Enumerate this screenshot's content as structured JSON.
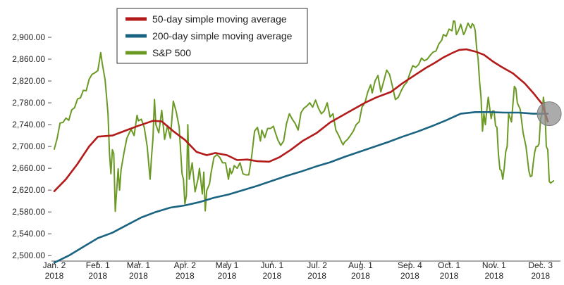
{
  "chart_data": {
    "type": "line",
    "title": "",
    "xlabel": "",
    "ylabel": "",
    "ylim": [
      2490,
      2940
    ],
    "grid": false,
    "legend_position": "top-center",
    "yticks": [
      2500,
      2540,
      2580,
      2620,
      2660,
      2700,
      2740,
      2780,
      2820,
      2860,
      2900
    ],
    "ytick_labels": [
      "2,500.00",
      "2,540.00",
      "2,580.00",
      "2,620.00",
      "2,660.00",
      "2,700.00",
      "2,740.00",
      "2,780.00",
      "2,820.00",
      "2,860.00",
      "2,900.00"
    ],
    "x_domain": [
      0,
      340
    ],
    "x_ticks": [
      {
        "day": 0,
        "line1": "Jan. 2",
        "line2": "2018"
      },
      {
        "day": 30,
        "line1": "Feb. 1",
        "line2": "2018"
      },
      {
        "day": 58,
        "line1": "Mar. 1",
        "line2": "2018"
      },
      {
        "day": 90,
        "line1": "Apr. 2",
        "line2": "2018"
      },
      {
        "day": 119,
        "line1": "May 1",
        "line2": "2018"
      },
      {
        "day": 150,
        "line1": "Jun. 1",
        "line2": "2018"
      },
      {
        "day": 181,
        "line1": "Jul. 2",
        "line2": "2018"
      },
      {
        "day": 211,
        "line1": "Aug. 1",
        "line2": "2018"
      },
      {
        "day": 245,
        "line1": "Sep. 4",
        "line2": "2018"
      },
      {
        "day": 272,
        "line1": "Oct. 1",
        "line2": "2018"
      },
      {
        "day": 303,
        "line1": "Nov. 1",
        "line2": "2018"
      },
      {
        "day": 335,
        "line1": "Dec. 3",
        "line2": "2018"
      }
    ],
    "series": [
      {
        "name": "50-day simple moving average",
        "color": "#b31b1b",
        "points": [
          [
            0,
            2618
          ],
          [
            8,
            2640
          ],
          [
            16,
            2668
          ],
          [
            24,
            2700
          ],
          [
            30,
            2718
          ],
          [
            40,
            2720
          ],
          [
            50,
            2730
          ],
          [
            58,
            2738
          ],
          [
            68,
            2747
          ],
          [
            74,
            2746
          ],
          [
            82,
            2728
          ],
          [
            90,
            2712
          ],
          [
            98,
            2690
          ],
          [
            105,
            2684
          ],
          [
            111,
            2688
          ],
          [
            119,
            2684
          ],
          [
            126,
            2675
          ],
          [
            133,
            2676
          ],
          [
            140,
            2673
          ],
          [
            148,
            2672
          ],
          [
            155,
            2680
          ],
          [
            163,
            2694
          ],
          [
            171,
            2710
          ],
          [
            181,
            2725
          ],
          [
            190,
            2744
          ],
          [
            198,
            2756
          ],
          [
            206,
            2768
          ],
          [
            214,
            2780
          ],
          [
            222,
            2790
          ],
          [
            232,
            2800
          ],
          [
            240,
            2816
          ],
          [
            248,
            2830
          ],
          [
            256,
            2844
          ],
          [
            262,
            2853
          ],
          [
            268,
            2863
          ],
          [
            274,
            2871
          ],
          [
            279,
            2877
          ],
          [
            284,
            2878
          ],
          [
            290,
            2874
          ],
          [
            296,
            2868
          ],
          [
            302,
            2856
          ],
          [
            308,
            2846
          ],
          [
            316,
            2834
          ],
          [
            324,
            2816
          ],
          [
            330,
            2798
          ],
          [
            336,
            2778
          ],
          [
            340,
            2746
          ]
        ]
      },
      {
        "name": "200-day simple moving average",
        "color": "#1a6482",
        "points": [
          [
            0,
            2487
          ],
          [
            10,
            2500
          ],
          [
            20,
            2516
          ],
          [
            30,
            2532
          ],
          [
            40,
            2542
          ],
          [
            50,
            2556
          ],
          [
            60,
            2570
          ],
          [
            70,
            2580
          ],
          [
            80,
            2588
          ],
          [
            90,
            2592
          ],
          [
            100,
            2598
          ],
          [
            110,
            2606
          ],
          [
            120,
            2612
          ],
          [
            130,
            2620
          ],
          [
            140,
            2628
          ],
          [
            150,
            2637
          ],
          [
            160,
            2646
          ],
          [
            170,
            2654
          ],
          [
            180,
            2663
          ],
          [
            190,
            2671
          ],
          [
            200,
            2681
          ],
          [
            210,
            2690
          ],
          [
            220,
            2699
          ],
          [
            230,
            2708
          ],
          [
            240,
            2718
          ],
          [
            250,
            2727
          ],
          [
            260,
            2737
          ],
          [
            270,
            2748
          ],
          [
            280,
            2760
          ],
          [
            290,
            2763
          ],
          [
            300,
            2763
          ],
          [
            310,
            2762
          ],
          [
            320,
            2762
          ],
          [
            330,
            2760
          ],
          [
            340,
            2760
          ]
        ]
      },
      {
        "name": "S&P 500",
        "color": "#6a9a24",
        "points": [
          [
            0,
            2695
          ],
          [
            2,
            2715
          ],
          [
            4,
            2743
          ],
          [
            6,
            2744
          ],
          [
            8,
            2752
          ],
          [
            10,
            2748
          ],
          [
            12,
            2767
          ],
          [
            14,
            2771
          ],
          [
            16,
            2787
          ],
          [
            18,
            2789
          ],
          [
            20,
            2803
          ],
          [
            22,
            2802
          ],
          [
            24,
            2823
          ],
          [
            26,
            2832
          ],
          [
            28,
            2835
          ],
          [
            30,
            2839
          ],
          [
            32,
            2872
          ],
          [
            33,
            2853
          ],
          [
            35,
            2822
          ],
          [
            37,
            2760
          ],
          [
            38,
            2690
          ],
          [
            39,
            2650
          ],
          [
            40,
            2694
          ],
          [
            41,
            2687
          ],
          [
            42,
            2581
          ],
          [
            44,
            2659
          ],
          [
            45,
            2620
          ],
          [
            46,
            2657
          ],
          [
            48,
            2688
          ],
          [
            50,
            2715
          ],
          [
            52,
            2727
          ],
          [
            53,
            2731
          ],
          [
            55,
            2720
          ],
          [
            57,
            2757
          ],
          [
            58,
            2747
          ],
          [
            60,
            2750
          ],
          [
            62,
            2735
          ],
          [
            64,
            2700
          ],
          [
            66,
            2640
          ],
          [
            67,
            2680
          ],
          [
            68,
            2715
          ],
          [
            69,
            2786
          ],
          [
            70,
            2740
          ],
          [
            72,
            2725
          ],
          [
            74,
            2766
          ],
          [
            76,
            2713
          ],
          [
            78,
            2738
          ],
          [
            80,
            2715
          ],
          [
            82,
            2783
          ],
          [
            84,
            2764
          ],
          [
            86,
            2736
          ],
          [
            88,
            2650
          ],
          [
            89,
            2640
          ],
          [
            90,
            2595
          ],
          [
            91,
            2610
          ],
          [
            92,
            2740
          ],
          [
            93,
            2640
          ],
          [
            95,
            2670
          ],
          [
            97,
            2617
          ],
          [
            99,
            2640
          ],
          [
            100,
            2660
          ],
          [
            102,
            2613
          ],
          [
            103,
            2653
          ],
          [
            104,
            2582
          ],
          [
            105,
            2619
          ],
          [
            107,
            2632
          ],
          [
            108,
            2652
          ],
          [
            110,
            2680
          ],
          [
            112,
            2685
          ],
          [
            114,
            2680
          ],
          [
            116,
            2670
          ],
          [
            118,
            2670
          ],
          [
            120,
            2640
          ],
          [
            121,
            2660
          ],
          [
            122,
            2650
          ],
          [
            123,
            2655
          ],
          [
            124,
            2665
          ],
          [
            126,
            2660
          ],
          [
            128,
            2670
          ],
          [
            130,
            2650
          ],
          [
            132,
            2648
          ],
          [
            134,
            2648
          ],
          [
            136,
            2682
          ],
          [
            138,
            2728
          ],
          [
            140,
            2735
          ],
          [
            142,
            2710
          ],
          [
            143,
            2730
          ],
          [
            145,
            2716
          ],
          [
            147,
            2733
          ],
          [
            149,
            2733
          ],
          [
            151,
            2737
          ],
          [
            152,
            2728
          ],
          [
            154,
            2712
          ],
          [
            156,
            2702
          ],
          [
            158,
            2710
          ],
          [
            160,
            2742
          ],
          [
            162,
            2760
          ],
          [
            164,
            2750
          ],
          [
            166,
            2742
          ],
          [
            168,
            2730
          ],
          [
            170,
            2762
          ],
          [
            172,
            2770
          ],
          [
            174,
            2774
          ],
          [
            176,
            2780
          ],
          [
            178,
            2772
          ],
          [
            180,
            2785
          ],
          [
            182,
            2770
          ],
          [
            184,
            2760
          ],
          [
            186,
            2765
          ],
          [
            188,
            2780
          ],
          [
            190,
            2754
          ],
          [
            192,
            2760
          ],
          [
            194,
            2730
          ],
          [
            196,
            2720
          ],
          [
            198,
            2708
          ],
          [
            199,
            2703
          ],
          [
            200,
            2708
          ],
          [
            202,
            2713
          ],
          [
            204,
            2720
          ],
          [
            206,
            2728
          ],
          [
            208,
            2740
          ],
          [
            210,
            2745
          ],
          [
            212,
            2772
          ],
          [
            214,
            2780
          ],
          [
            216,
            2800
          ],
          [
            218,
            2813
          ],
          [
            219,
            2798
          ],
          [
            221,
            2820
          ],
          [
            223,
            2830
          ],
          [
            225,
            2800
          ],
          [
            227,
            2820
          ],
          [
            229,
            2840
          ],
          [
            231,
            2832
          ],
          [
            233,
            2810
          ],
          [
            235,
            2786
          ],
          [
            237,
            2790
          ],
          [
            239,
            2802
          ],
          [
            241,
            2812
          ],
          [
            243,
            2818
          ],
          [
            245,
            2834
          ],
          [
            247,
            2848
          ],
          [
            249,
            2845
          ],
          [
            251,
            2850
          ],
          [
            253,
            2862
          ],
          [
            255,
            2857
          ],
          [
            257,
            2860
          ],
          [
            259,
            2867
          ],
          [
            261,
            2873
          ],
          [
            263,
            2875
          ],
          [
            265,
            2888
          ],
          [
            267,
            2895
          ],
          [
            268,
            2905
          ],
          [
            270,
            2902
          ],
          [
            272,
            2915
          ],
          [
            274,
            2912
          ],
          [
            275,
            2930
          ],
          [
            276,
            2929
          ],
          [
            277,
            2905
          ],
          [
            278,
            2910
          ],
          [
            279,
            2916
          ],
          [
            280,
            2924
          ],
          [
            282,
            2905
          ],
          [
            283,
            2910
          ],
          [
            285,
            2926
          ],
          [
            286,
            2921
          ],
          [
            287,
            2917
          ],
          [
            288,
            2925
          ],
          [
            289,
            2922
          ],
          [
            290,
            2912
          ],
          [
            291,
            2880
          ],
          [
            292,
            2860
          ],
          [
            293,
            2820
          ],
          [
            294,
            2790
          ],
          [
            295,
            2728
          ],
          [
            296,
            2760
          ],
          [
            297,
            2740
          ],
          [
            298,
            2767
          ],
          [
            299,
            2790
          ],
          [
            300,
            2770
          ],
          [
            301,
            2751
          ],
          [
            302,
            2765
          ],
          [
            303,
            2765
          ],
          [
            304,
            2738
          ],
          [
            305,
            2735
          ],
          [
            306,
            2686
          ],
          [
            307,
            2658
          ],
          [
            308,
            2656
          ],
          [
            309,
            2640
          ],
          [
            310,
            2660
          ],
          [
            311,
            2690
          ],
          [
            312,
            2700
          ],
          [
            313,
            2760
          ],
          [
            315,
            2745
          ],
          [
            317,
            2810
          ],
          [
            318,
            2806
          ],
          [
            319,
            2780
          ],
          [
            321,
            2768
          ],
          [
            323,
            2725
          ],
          [
            325,
            2700
          ],
          [
            327,
            2655
          ],
          [
            328,
            2645
          ],
          [
            329,
            2646
          ],
          [
            330,
            2670
          ],
          [
            331,
            2690
          ],
          [
            332,
            2700
          ],
          [
            333,
            2700
          ],
          [
            334,
            2705
          ],
          [
            335,
            2750
          ],
          [
            336,
            2760
          ],
          [
            337,
            2790
          ],
          [
            338,
            2770
          ],
          [
            339,
            2700
          ],
          [
            340,
            2694
          ],
          [
            341,
            2636
          ],
          [
            342,
            2633
          ],
          [
            344,
            2637
          ]
        ]
      }
    ],
    "annotation": {
      "type": "circle-marker",
      "day": 341,
      "value": 2760,
      "color": "#8f8f8f"
    }
  }
}
